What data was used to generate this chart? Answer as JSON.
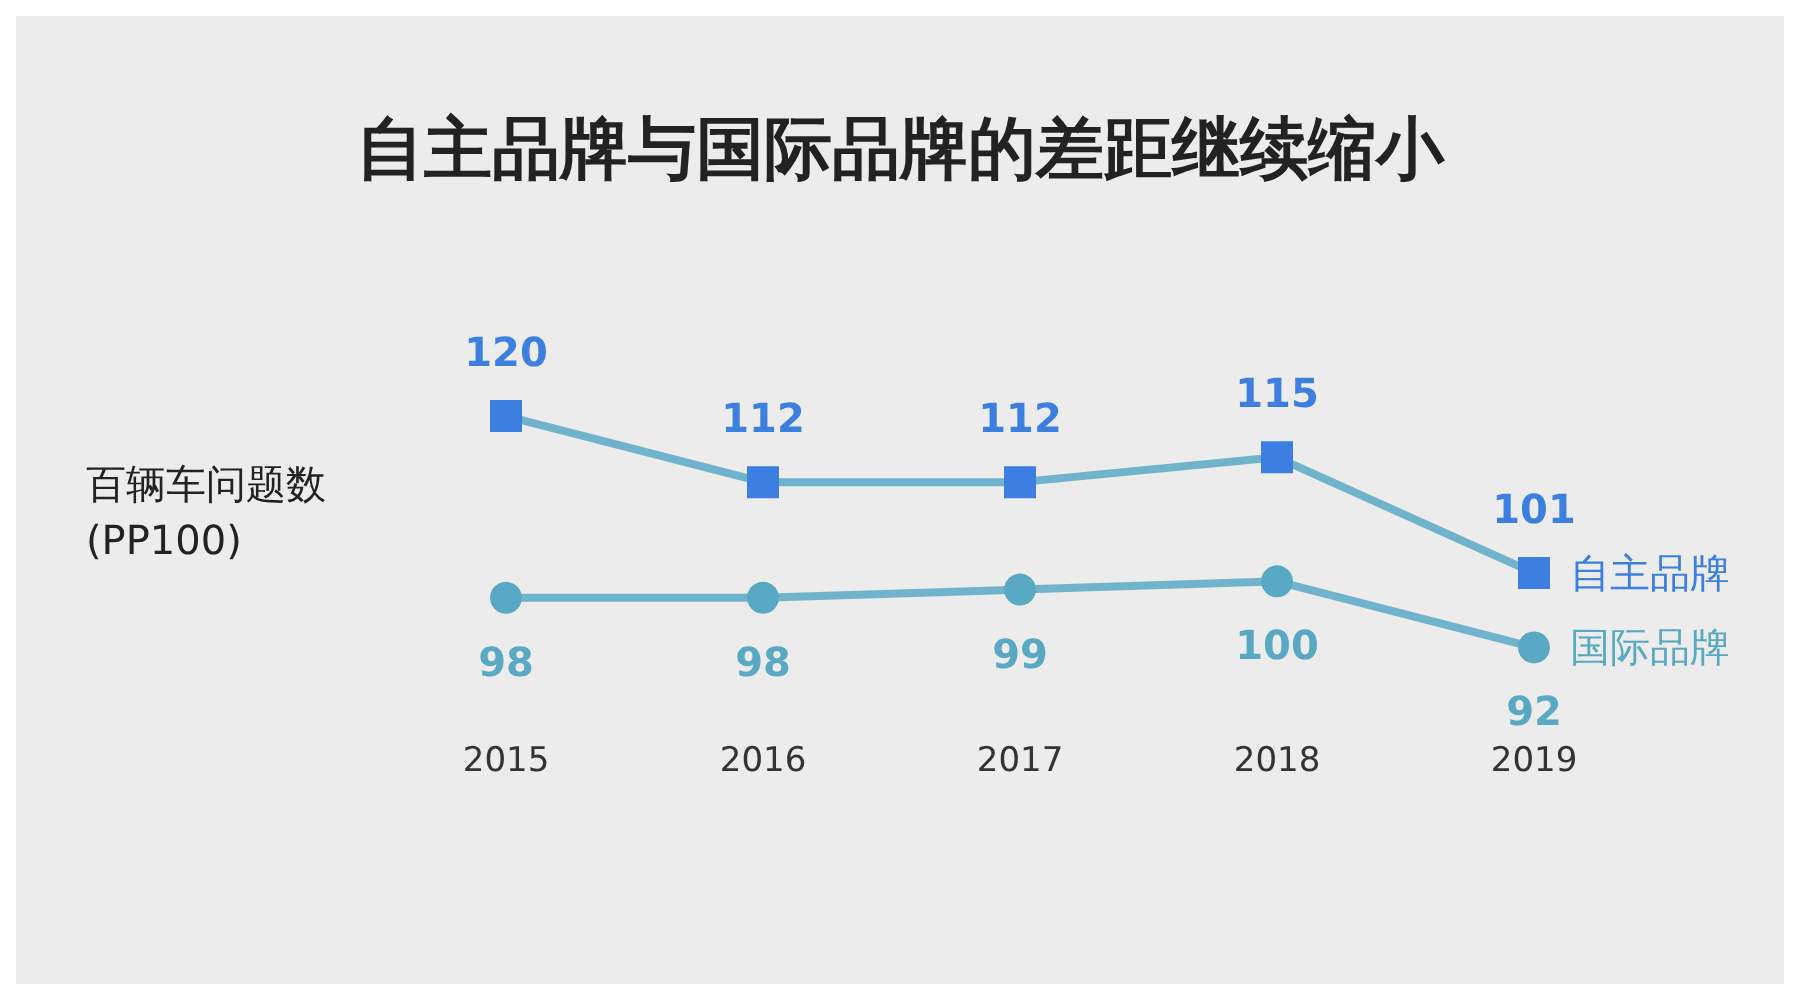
{
  "chart_data": {
    "type": "line",
    "title": "自主品牌与国际品牌的差距继续缩小",
    "ylabel": "百辆车问题数\n(PP100)",
    "categories": [
      "2015",
      "2016",
      "2017",
      "2018",
      "2019"
    ],
    "series": [
      {
        "name": "自主品牌",
        "color": "#3d7fe0",
        "marker": "square",
        "values": [
          120,
          112,
          112,
          115,
          101
        ]
      },
      {
        "name": "国际品牌",
        "color": "#5aa9c4",
        "marker": "circle",
        "values": [
          98,
          98,
          99,
          100,
          92
        ]
      }
    ],
    "data_labels": true,
    "grid": false,
    "legend": false
  }
}
